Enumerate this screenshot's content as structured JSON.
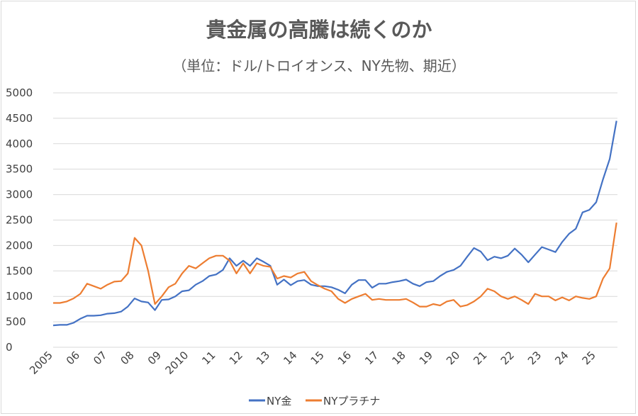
{
  "chart_data": {
    "type": "line",
    "title": "貴金属の高騰は続くのか",
    "subtitle": "（単位：ドル/トロイオンス、NY先物、期近）",
    "xlabel": "",
    "ylabel": "",
    "ylim": [
      0,
      5000
    ],
    "yticks": [
      0,
      500,
      1000,
      1500,
      2000,
      2500,
      3000,
      3500,
      4000,
      4500,
      5000
    ],
    "xtick_labels": [
      "2005",
      "06",
      "07",
      "08",
      "09",
      "2010",
      "11",
      "12",
      "13",
      "14",
      "15",
      "16",
      "17",
      "18",
      "19",
      "20",
      "21",
      "22",
      "23",
      "24",
      "25"
    ],
    "xlim": [
      2005,
      2025.8
    ],
    "grid": true,
    "legend_position": "bottom",
    "series": [
      {
        "name": "NY金",
        "color": "#4472C4",
        "values": [
          430,
          440,
          440,
          480,
          560,
          620,
          620,
          630,
          660,
          670,
          700,
          800,
          960,
          900,
          880,
          730,
          930,
          940,
          1000,
          1100,
          1120,
          1230,
          1300,
          1400,
          1430,
          1520,
          1750,
          1600,
          1700,
          1600,
          1750,
          1680,
          1600,
          1230,
          1330,
          1220,
          1300,
          1320,
          1230,
          1200,
          1200,
          1180,
          1130,
          1060,
          1230,
          1320,
          1320,
          1170,
          1250,
          1250,
          1280,
          1300,
          1330,
          1250,
          1200,
          1280,
          1300,
          1400,
          1480,
          1520,
          1600,
          1780,
          1950,
          1880,
          1710,
          1780,
          1750,
          1800,
          1940,
          1820,
          1670,
          1820,
          1970,
          1920,
          1870,
          2070,
          2230,
          2330,
          2650,
          2700,
          2850,
          3300,
          3700,
          4450
        ]
      },
      {
        "name": "NYプラチナ",
        "color": "#ED7D31",
        "values": [
          870,
          870,
          900,
          960,
          1050,
          1250,
          1200,
          1150,
          1230,
          1290,
          1300,
          1450,
          2150,
          2000,
          1500,
          850,
          1000,
          1180,
          1250,
          1450,
          1600,
          1550,
          1650,
          1750,
          1800,
          1800,
          1700,
          1450,
          1650,
          1450,
          1650,
          1600,
          1580,
          1350,
          1400,
          1370,
          1450,
          1480,
          1300,
          1220,
          1150,
          1100,
          950,
          870,
          950,
          1000,
          1050,
          930,
          950,
          930,
          930,
          930,
          950,
          880,
          800,
          800,
          850,
          820,
          900,
          930,
          800,
          830,
          900,
          1000,
          1150,
          1100,
          1000,
          950,
          1000,
          930,
          850,
          1050,
          1000,
          1000,
          920,
          980,
          920,
          1000,
          970,
          950,
          1000,
          1350,
          1550,
          2450
        ]
      }
    ]
  }
}
